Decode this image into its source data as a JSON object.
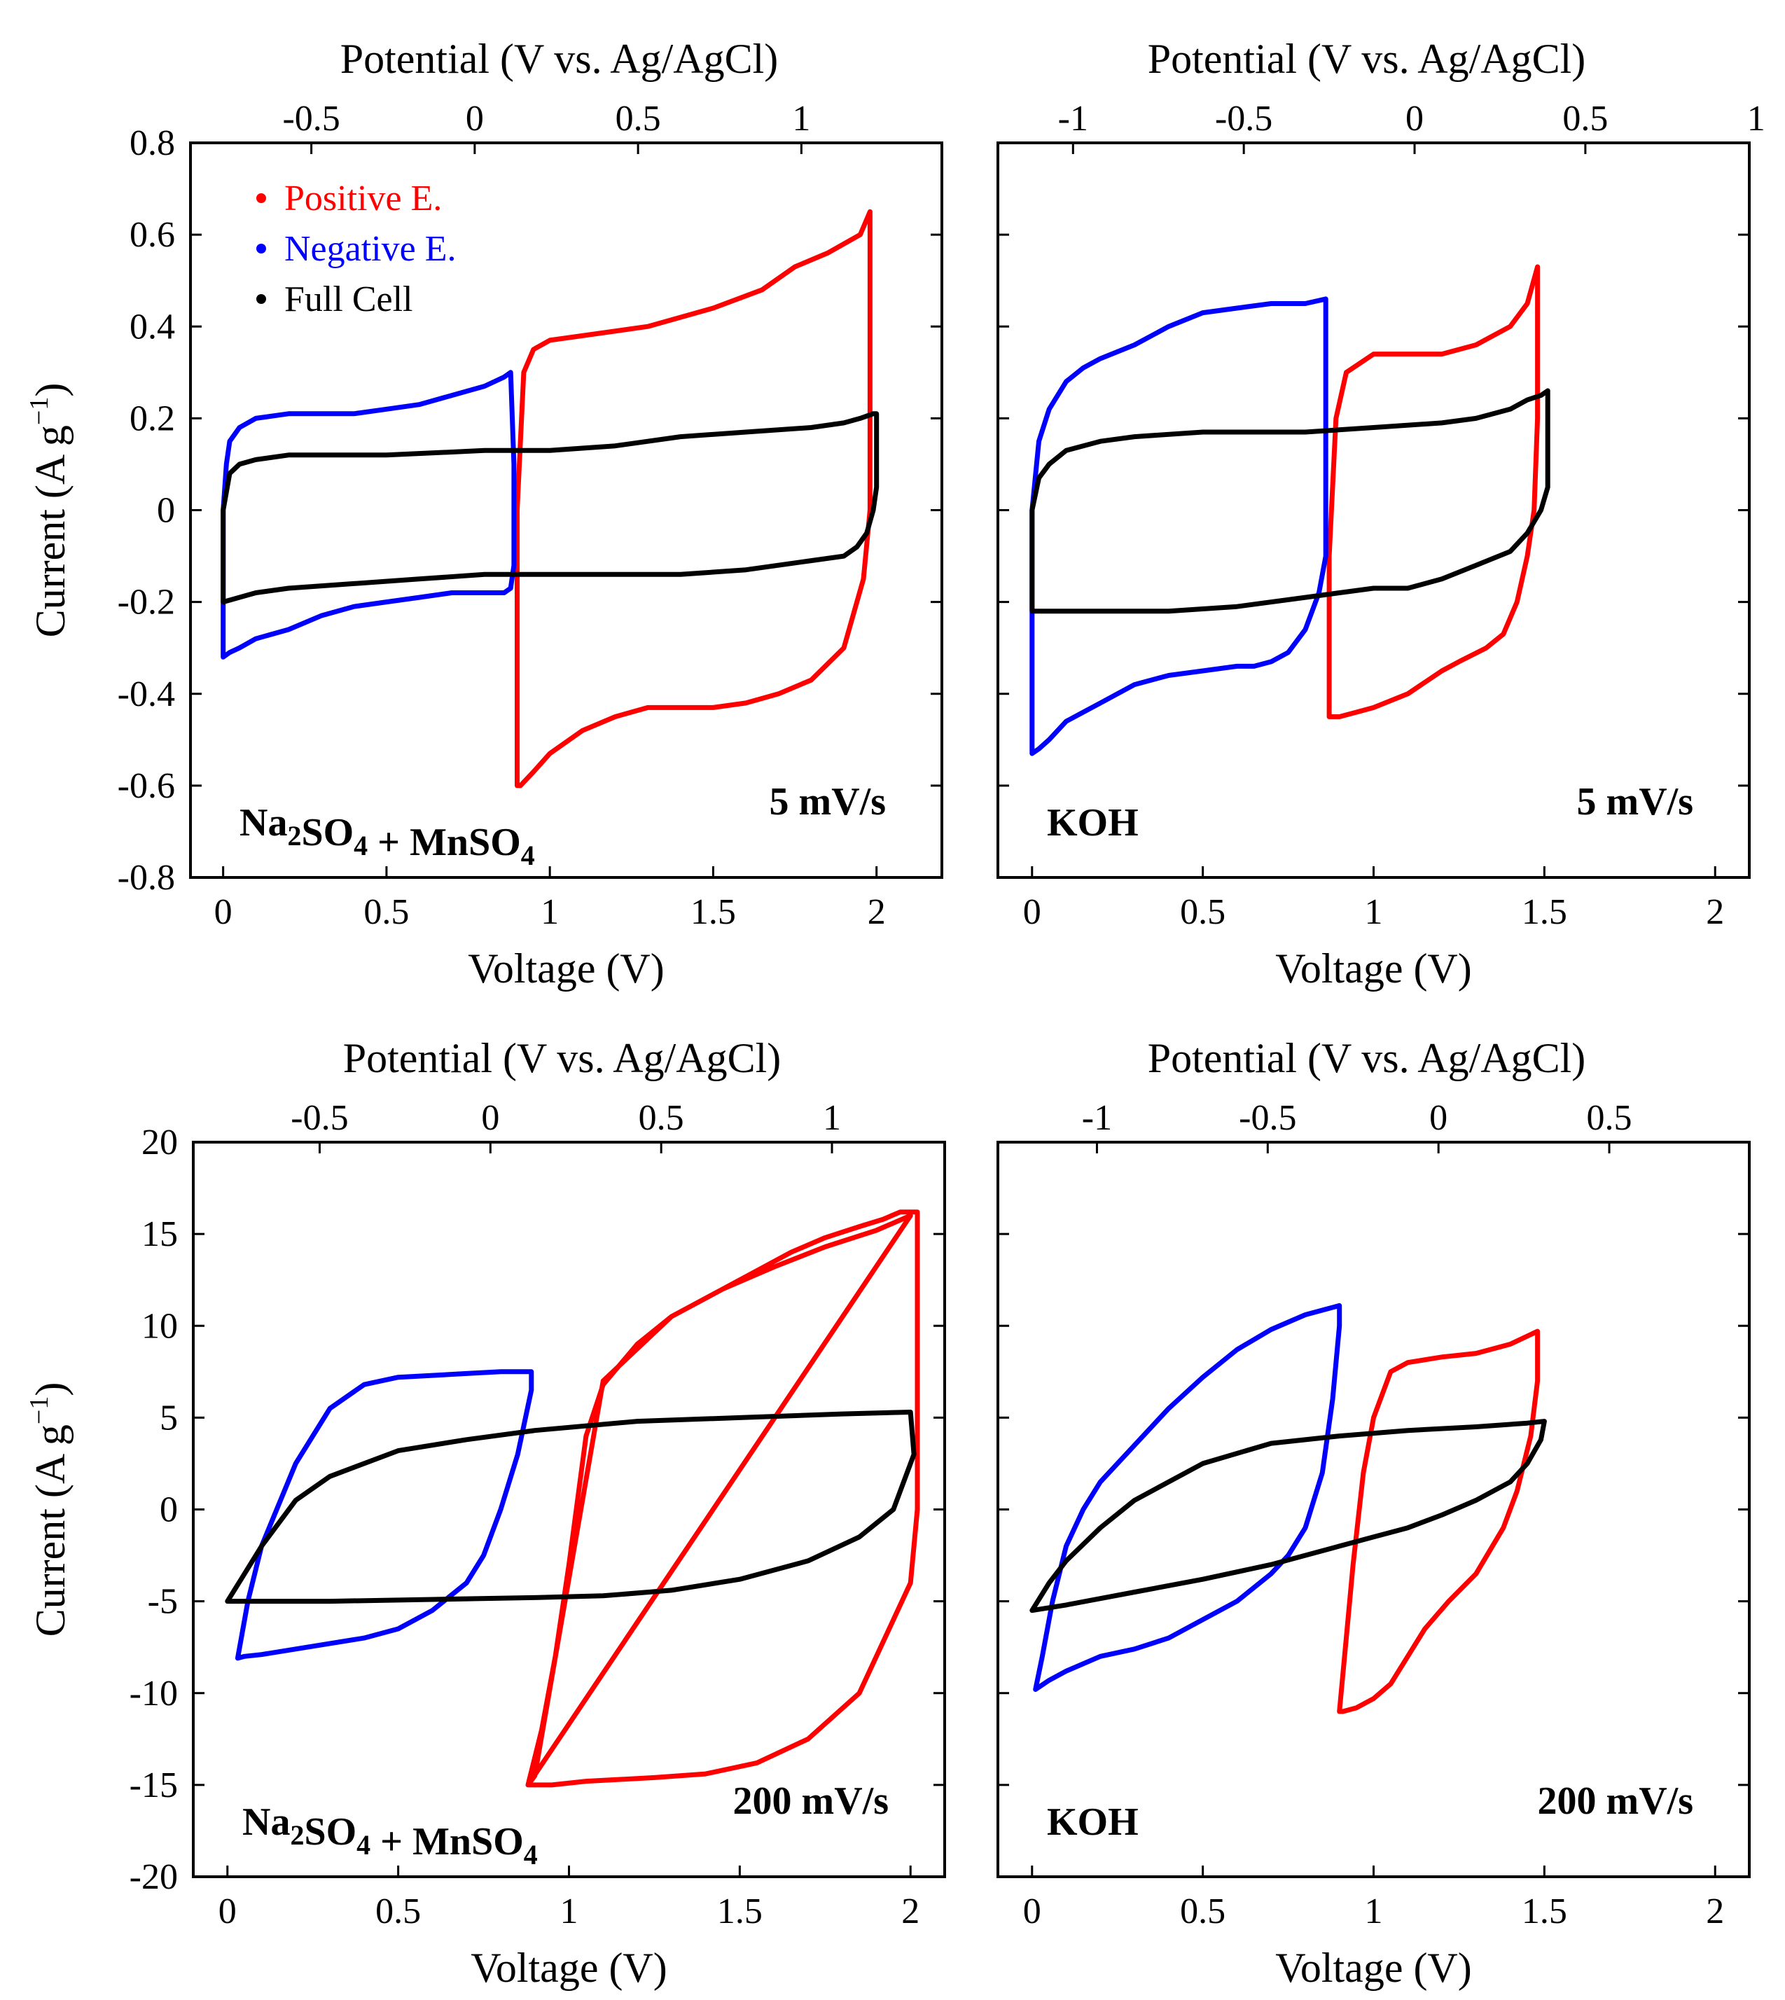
{
  "figure": {
    "legend": [
      {
        "label": "Positive E.",
        "color": "#ff0000"
      },
      {
        "label": "Negative E.",
        "color": "#0000ff"
      },
      {
        "label": "Full Cell",
        "color": "#000000"
      }
    ]
  },
  "chart_data": [
    {
      "type": "line",
      "title": "",
      "electrolyte": "Na2SO4 + MnSO4",
      "scan_rate": "5 mV/s",
      "xlabel": "Voltage (V)",
      "ylabel": "Current (A g-1)",
      "x2label": "Potential (V vs. Ag/AgCl)",
      "xlim": [
        -0.1,
        2.2
      ],
      "xticks": [
        0,
        0.5,
        1,
        1.5,
        2
      ],
      "xticklabels": [
        "0",
        "0.5",
        "1",
        "1.5",
        "2"
      ],
      "ylim": [
        -0.8,
        0.8
      ],
      "yticks": [
        -0.8,
        -0.6,
        -0.4,
        -0.2,
        0,
        0.2,
        0.4,
        0.6,
        0.8
      ],
      "yticklabels": [
        "-0.8",
        "-0.6",
        "-0.4",
        "-0.2",
        "0",
        "0.2",
        "0.4",
        "0.6",
        "0.8"
      ],
      "top_axis": {
        "offset": -0.77,
        "ticks": [
          -0.5,
          0,
          0.5,
          1
        ],
        "labels": [
          "-0.5",
          "0",
          "0.5",
          "1"
        ]
      },
      "series": [
        {
          "name": "Positive E.",
          "color": "#ff0000",
          "x": [
            0.9,
            0.92,
            0.95,
            1.0,
            1.1,
            1.3,
            1.5,
            1.65,
            1.75,
            1.85,
            1.95,
            1.98,
            1.98,
            1.98,
            1.96,
            1.9,
            1.8,
            1.7,
            1.6,
            1.5,
            1.4,
            1.3,
            1.2,
            1.1,
            1.0,
            0.95,
            0.91,
            0.9,
            0.9,
            0.9
          ],
          "y": [
            0.0,
            0.3,
            0.35,
            0.37,
            0.38,
            0.4,
            0.44,
            0.48,
            0.53,
            0.56,
            0.6,
            0.65,
            0.3,
            0.0,
            -0.15,
            -0.3,
            -0.37,
            -0.4,
            -0.42,
            -0.43,
            -0.43,
            -0.43,
            -0.45,
            -0.48,
            -0.53,
            -0.57,
            -0.6,
            -0.6,
            -0.3,
            0.0
          ]
        },
        {
          "name": "Negative E.",
          "color": "#0000ff",
          "x": [
            0.0,
            0.01,
            0.02,
            0.05,
            0.1,
            0.2,
            0.3,
            0.4,
            0.5,
            0.6,
            0.7,
            0.8,
            0.86,
            0.88,
            0.89,
            0.89,
            0.88,
            0.86,
            0.8,
            0.7,
            0.6,
            0.5,
            0.4,
            0.3,
            0.2,
            0.1,
            0.05,
            0.02,
            0.0,
            0.0
          ],
          "y": [
            0.0,
            0.1,
            0.15,
            0.18,
            0.2,
            0.21,
            0.21,
            0.21,
            0.22,
            0.23,
            0.25,
            0.27,
            0.29,
            0.3,
            0.1,
            -0.12,
            -0.17,
            -0.18,
            -0.18,
            -0.18,
            -0.19,
            -0.2,
            -0.21,
            -0.23,
            -0.26,
            -0.28,
            -0.3,
            -0.31,
            -0.32,
            0.0
          ]
        },
        {
          "name": "Full Cell",
          "color": "#000000",
          "x": [
            0.0,
            0.02,
            0.05,
            0.1,
            0.2,
            0.3,
            0.5,
            0.8,
            1.0,
            1.2,
            1.4,
            1.6,
            1.8,
            1.9,
            1.95,
            1.99,
            2.0,
            2.0,
            1.99,
            1.97,
            1.94,
            1.9,
            1.8,
            1.6,
            1.4,
            1.2,
            1.0,
            0.8,
            0.6,
            0.4,
            0.2,
            0.1,
            0.0
          ],
          "y": [
            0.0,
            0.08,
            0.1,
            0.11,
            0.12,
            0.12,
            0.12,
            0.13,
            0.13,
            0.14,
            0.16,
            0.17,
            0.18,
            0.19,
            0.2,
            0.21,
            0.21,
            0.05,
            0.0,
            -0.05,
            -0.08,
            -0.1,
            -0.11,
            -0.13,
            -0.14,
            -0.14,
            -0.14,
            -0.14,
            -0.15,
            -0.16,
            -0.17,
            -0.18,
            -0.2
          ]
        }
      ]
    },
    {
      "type": "line",
      "title": "",
      "electrolyte": "KOH",
      "scan_rate": "5 mV/s",
      "xlabel": "Voltage (V)",
      "ylabel": "",
      "x2label": "Potential (V vs. Ag/AgCl)",
      "xlim": [
        -0.1,
        2.1
      ],
      "xticks": [
        0,
        0.5,
        1,
        1.5,
        2
      ],
      "xticklabels": [
        "0",
        "0.5",
        "1",
        "1.5",
        "2"
      ],
      "ylim": [
        -0.8,
        0.8
      ],
      "yticks": [
        -0.8,
        -0.6,
        -0.4,
        -0.2,
        0,
        0.2,
        0.4,
        0.6,
        0.8
      ],
      "yticklabels": [],
      "top_axis": {
        "offset": -1.12,
        "ticks": [
          -1,
          -0.5,
          0,
          0.5,
          1
        ],
        "labels": [
          "-1",
          "-0.5",
          "0",
          "0.5",
          "1"
        ]
      },
      "series": [
        {
          "name": "Positive E.",
          "color": "#ff0000",
          "x": [
            0.87,
            0.89,
            0.92,
            1.0,
            1.1,
            1.2,
            1.3,
            1.4,
            1.45,
            1.48,
            1.48,
            1.47,
            1.45,
            1.42,
            1.38,
            1.33,
            1.25,
            1.2,
            1.1,
            1.0,
            0.95,
            0.9,
            0.87,
            0.87
          ],
          "y": [
            -0.1,
            0.2,
            0.3,
            0.34,
            0.34,
            0.34,
            0.36,
            0.4,
            0.45,
            0.53,
            0.2,
            0.0,
            -0.1,
            -0.2,
            -0.27,
            -0.3,
            -0.33,
            -0.35,
            -0.4,
            -0.43,
            -0.44,
            -0.45,
            -0.45,
            -0.1
          ]
        },
        {
          "name": "Negative E.",
          "color": "#0000ff",
          "x": [
            0.0,
            0.02,
            0.05,
            0.1,
            0.15,
            0.2,
            0.3,
            0.4,
            0.5,
            0.6,
            0.7,
            0.8,
            0.86,
            0.86,
            0.84,
            0.8,
            0.75,
            0.7,
            0.65,
            0.6,
            0.5,
            0.4,
            0.3,
            0.2,
            0.1,
            0.05,
            0.02,
            0.0,
            0.0
          ],
          "y": [
            0.0,
            0.15,
            0.22,
            0.28,
            0.31,
            0.33,
            0.36,
            0.4,
            0.43,
            0.44,
            0.45,
            0.45,
            0.46,
            -0.1,
            -0.18,
            -0.26,
            -0.31,
            -0.33,
            -0.34,
            -0.34,
            -0.35,
            -0.36,
            -0.38,
            -0.42,
            -0.46,
            -0.5,
            -0.52,
            -0.53,
            0.0
          ]
        },
        {
          "name": "Full Cell",
          "color": "#000000",
          "x": [
            0.0,
            0.02,
            0.05,
            0.1,
            0.2,
            0.3,
            0.5,
            0.8,
            1.0,
            1.2,
            1.3,
            1.4,
            1.45,
            1.49,
            1.51,
            1.51,
            1.49,
            1.45,
            1.4,
            1.3,
            1.2,
            1.1,
            1.0,
            0.8,
            0.6,
            0.4,
            0.2,
            0.1,
            0.0
          ],
          "y": [
            0.0,
            0.07,
            0.1,
            0.13,
            0.15,
            0.16,
            0.17,
            0.17,
            0.18,
            0.19,
            0.2,
            0.22,
            0.24,
            0.25,
            0.26,
            0.05,
            0.0,
            -0.05,
            -0.09,
            -0.12,
            -0.15,
            -0.17,
            -0.17,
            -0.19,
            -0.21,
            -0.22,
            -0.22,
            -0.22,
            -0.22
          ]
        }
      ]
    },
    {
      "type": "line",
      "title": "",
      "electrolyte": "Na2SO4 + MnSO4",
      "scan_rate": "200 mV/s",
      "xlabel": "Voltage (V)",
      "ylabel": "Current (A g-1)",
      "x2label": "Potential (V vs. Ag/AgCl)",
      "xlim": [
        -0.1,
        2.1
      ],
      "xticks": [
        0,
        0.5,
        1,
        1.5,
        2
      ],
      "xticklabels": [
        "0",
        "0.5",
        "1",
        "1.5",
        "2"
      ],
      "ylim": [
        -20,
        20
      ],
      "yticks": [
        -20,
        -15,
        -10,
        -5,
        0,
        5,
        10,
        15,
        20
      ],
      "yticklabels": [
        "-20",
        "-15",
        "-10",
        "-5",
        "0",
        "5",
        "10",
        "15",
        "20"
      ],
      "top_axis": {
        "offset": -0.77,
        "ticks": [
          -0.5,
          0,
          0.5,
          1
        ],
        "labels": [
          "-0.5",
          "0",
          "0.5",
          "1"
        ]
      },
      "series": [
        {
          "name": "Positive E.",
          "color": "#ff0000",
          "x": [
            0.88,
            0.95,
            1.05,
            1.15,
            1.25,
            1.4,
            1.55,
            1.7,
            1.85,
            2.0,
            2.02,
            2.02,
            2.0,
            1.97,
            1.92,
            1.85,
            1.75,
            1.65,
            1.55,
            1.45,
            1.3,
            1.1,
            0.9,
            0.88,
            0.92,
            0.96,
            1.0,
            1.05,
            1.1,
            1.2,
            1.3,
            1.45,
            1.6,
            1.75,
            1.9,
            2.0
          ],
          "y": [
            -15.0,
            -15.0,
            -14.8,
            -14.7,
            -14.6,
            -14.4,
            -13.8,
            -12.5,
            -10.0,
            -4.0,
            0.0,
            16.2,
            16.2,
            16.2,
            15.8,
            15.4,
            14.8,
            14.0,
            13.0,
            12.0,
            10.5,
            7.0,
            -14.5,
            -15.0,
            -12.0,
            -8.0,
            -3.0,
            4.0,
            6.8,
            9.0,
            10.5,
            12.0,
            13.2,
            14.3,
            15.2,
            16.0
          ]
        },
        {
          "name": "Negative E.",
          "color": "#0000ff",
          "x": [
            0.03,
            0.06,
            0.1,
            0.2,
            0.3,
            0.4,
            0.5,
            0.6,
            0.7,
            0.8,
            0.86,
            0.89,
            0.89,
            0.85,
            0.8,
            0.75,
            0.7,
            0.6,
            0.5,
            0.4,
            0.3,
            0.2,
            0.1,
            0.05,
            0.03
          ],
          "y": [
            -8.1,
            -5.0,
            -2.0,
            2.5,
            5.5,
            6.8,
            7.2,
            7.3,
            7.4,
            7.5,
            7.5,
            7.5,
            6.5,
            3.0,
            0.0,
            -2.5,
            -4.0,
            -5.5,
            -6.5,
            -7.0,
            -7.3,
            -7.6,
            -7.9,
            -8.0,
            -8.1
          ]
        },
        {
          "name": "Full Cell",
          "color": "#000000",
          "x": [
            0.0,
            0.05,
            0.1,
            0.2,
            0.3,
            0.5,
            0.7,
            0.9,
            1.2,
            1.5,
            1.8,
            2.0,
            2.01,
            1.95,
            1.85,
            1.7,
            1.5,
            1.3,
            1.1,
            0.9,
            0.6,
            0.3,
            0.1,
            0.0
          ],
          "y": [
            -5.0,
            -3.5,
            -2.0,
            0.5,
            1.8,
            3.2,
            3.8,
            4.3,
            4.8,
            5.0,
            5.2,
            5.3,
            3.0,
            0.0,
            -1.5,
            -2.8,
            -3.8,
            -4.4,
            -4.7,
            -4.8,
            -4.9,
            -5.0,
            -5.0,
            -5.0
          ]
        }
      ]
    },
    {
      "type": "line",
      "title": "",
      "electrolyte": "KOH",
      "scan_rate": "200 mV/s",
      "xlabel": "Voltage (V)",
      "ylabel": "",
      "x2label": "Potential (V vs. Ag/AgCl)",
      "xlim": [
        -0.1,
        2.1
      ],
      "xticks": [
        0,
        0.5,
        1,
        1.5,
        2
      ],
      "xticklabels": [
        "0",
        "0.5",
        "1",
        "1.5",
        "2"
      ],
      "ylim": [
        -20,
        20
      ],
      "yticks": [
        -20,
        -15,
        -10,
        -5,
        0,
        5,
        10,
        15,
        20
      ],
      "yticklabels": [],
      "top_axis": {
        "offset": -1.19,
        "ticks": [
          -1,
          -0.5,
          0,
          0.5
        ],
        "labels": [
          "-1",
          "-0.5",
          "0",
          "0.5"
        ]
      },
      "series": [
        {
          "name": "Positive E.",
          "color": "#ff0000",
          "x": [
            0.9,
            0.92,
            0.94,
            0.97,
            1.0,
            1.05,
            1.1,
            1.2,
            1.3,
            1.4,
            1.48,
            1.48,
            1.46,
            1.42,
            1.38,
            1.3,
            1.22,
            1.15,
            1.1,
            1.05,
            1.0,
            0.95,
            0.91,
            0.9
          ],
          "y": [
            -11.0,
            -7.0,
            -3.0,
            2.0,
            5.0,
            7.5,
            8.0,
            8.3,
            8.5,
            9.0,
            9.7,
            7.0,
            4.0,
            1.0,
            -1.0,
            -3.5,
            -5.0,
            -6.5,
            -8.0,
            -9.5,
            -10.3,
            -10.8,
            -11.0,
            -11.0
          ]
        },
        {
          "name": "Negative E.",
          "color": "#0000ff",
          "x": [
            0.01,
            0.03,
            0.06,
            0.1,
            0.15,
            0.2,
            0.3,
            0.4,
            0.5,
            0.6,
            0.7,
            0.8,
            0.86,
            0.9,
            0.9,
            0.88,
            0.85,
            0.8,
            0.75,
            0.7,
            0.6,
            0.5,
            0.4,
            0.3,
            0.2,
            0.1,
            0.05,
            0.01
          ],
          "y": [
            -9.8,
            -8.0,
            -5.0,
            -2.0,
            0.0,
            1.5,
            3.5,
            5.5,
            7.2,
            8.7,
            9.8,
            10.6,
            10.9,
            11.1,
            10.0,
            6.0,
            2.0,
            -1.0,
            -2.5,
            -3.5,
            -5.0,
            -6.0,
            -7.0,
            -7.6,
            -8.0,
            -8.8,
            -9.3,
            -9.8
          ]
        },
        {
          "name": "Full Cell",
          "color": "#000000",
          "x": [
            0.0,
            0.05,
            0.1,
            0.2,
            0.3,
            0.5,
            0.7,
            0.9,
            1.1,
            1.3,
            1.45,
            1.5,
            1.49,
            1.45,
            1.4,
            1.3,
            1.2,
            1.1,
            1.0,
            0.9,
            0.7,
            0.5,
            0.3,
            0.1,
            0.0
          ],
          "y": [
            -5.5,
            -4.0,
            -2.8,
            -1.0,
            0.5,
            2.5,
            3.6,
            4.0,
            4.3,
            4.5,
            4.7,
            4.8,
            3.8,
            2.5,
            1.5,
            0.5,
            -0.3,
            -1.0,
            -1.5,
            -2.0,
            -3.0,
            -3.8,
            -4.5,
            -5.2,
            -5.5
          ]
        }
      ]
    }
  ]
}
